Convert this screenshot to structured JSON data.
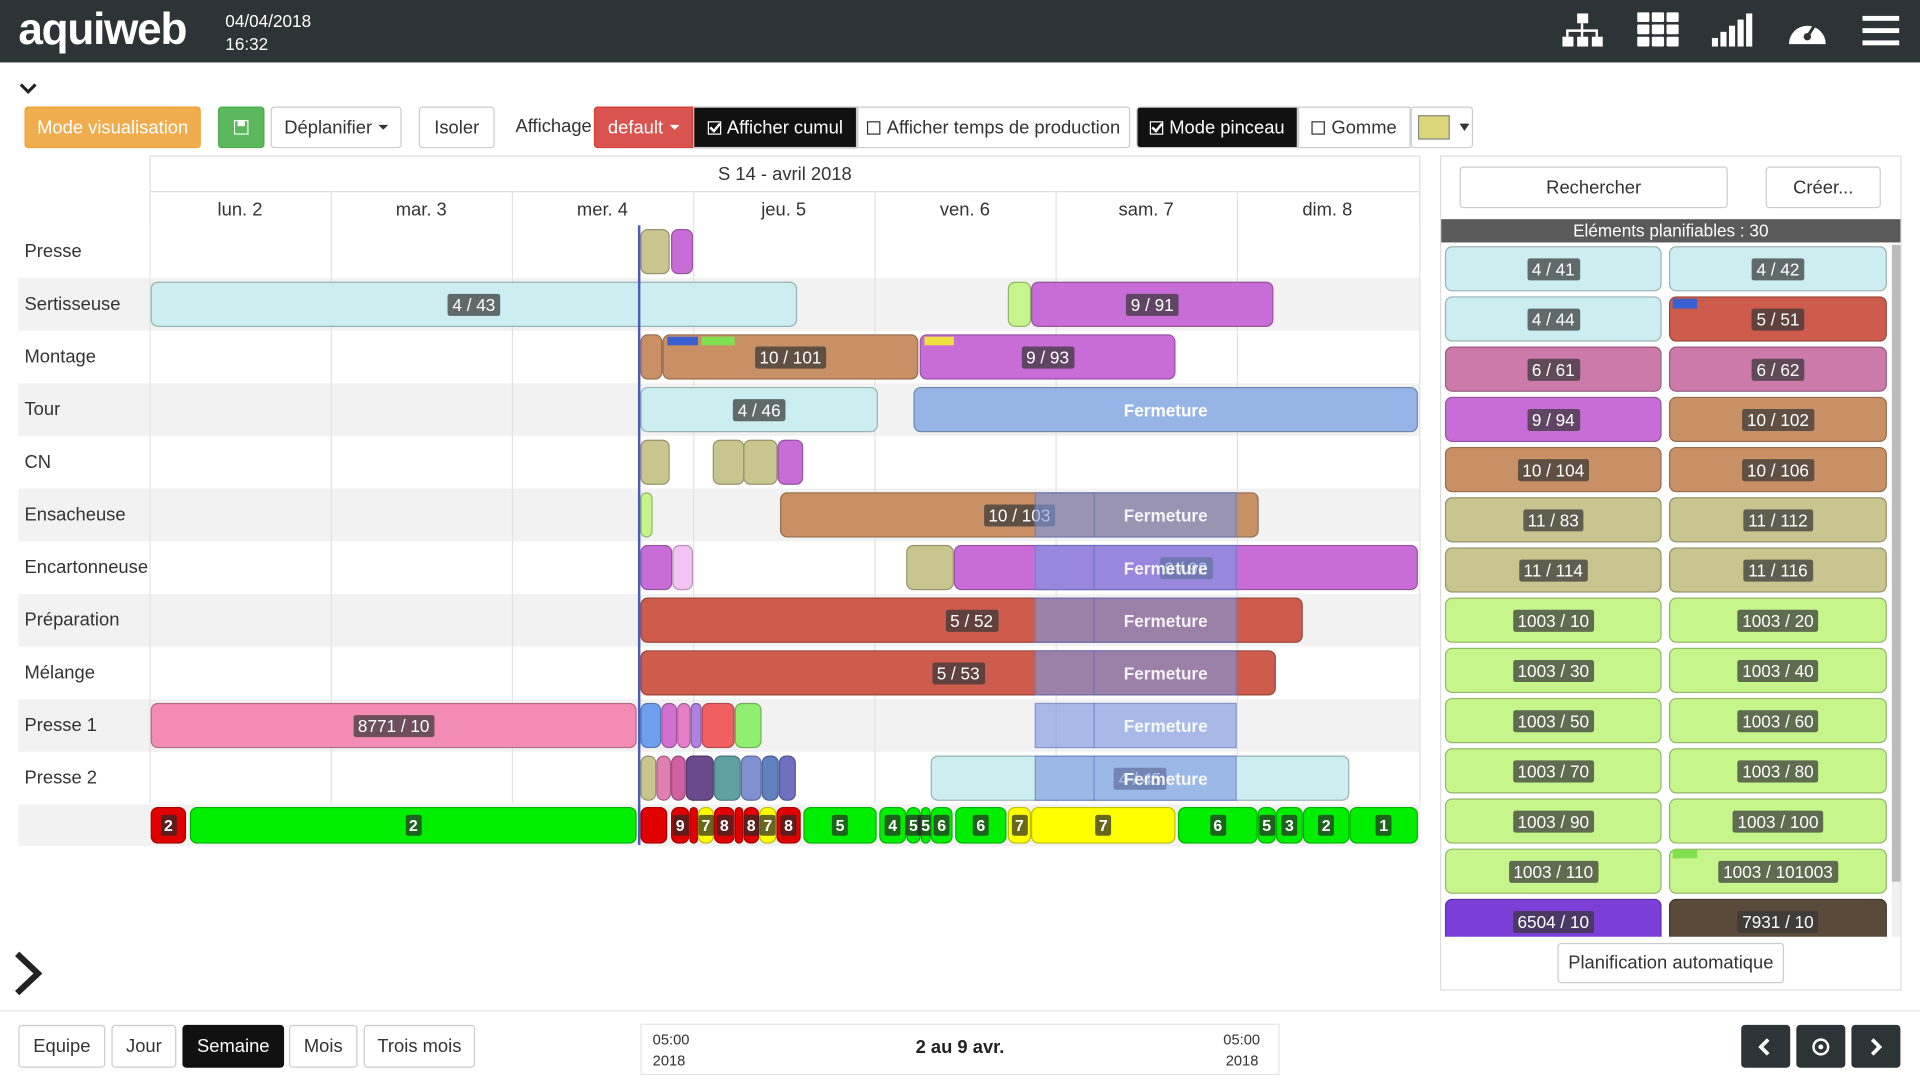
{
  "header": {
    "logo": "aquiweb",
    "date": "04/04/2018",
    "time": "16:32"
  },
  "toolbar": {
    "mode": "Mode visualisation",
    "deplanifier": "Déplanifier",
    "isoler": "Isoler",
    "affichage": "Affichage",
    "default": "default",
    "afficher_cumul": "Afficher cumul",
    "afficher_temps": "Afficher temps de production",
    "mode_pinceau": "Mode pinceau",
    "gomme": "Gomme"
  },
  "calendar": {
    "week": "S 14 - avril 2018",
    "days": [
      "lun. 2",
      "mar. 3",
      "mer. 4",
      "jeu. 5",
      "ven. 6",
      "sam. 7",
      "dim. 8"
    ],
    "rows": [
      {
        "name": "Presse",
        "bars": []
      },
      {
        "name": "Sertisseuse",
        "bars": [
          "4 / 43",
          "9 / 91"
        ]
      },
      {
        "name": "Montage",
        "bars": [
          "10 / 101",
          "9 / 93"
        ]
      },
      {
        "name": "Tour",
        "bars": [
          "4 / 46",
          "Fermeture"
        ]
      },
      {
        "name": "CN",
        "bars": []
      },
      {
        "name": "Ensacheuse",
        "bars": [
          "10 / 103",
          "Fermeture"
        ]
      },
      {
        "name": "Encartonneuse",
        "bars": [
          "9 / 92",
          "Fermeture"
        ]
      },
      {
        "name": "Préparation",
        "bars": [
          "5 / 52",
          "Fermeture"
        ]
      },
      {
        "name": "Mélange",
        "bars": [
          "5 / 53",
          "Fermeture"
        ]
      },
      {
        "name": "Presse 1",
        "bars": [
          "8771 / 10",
          "Fermeture"
        ]
      },
      {
        "name": "Presse 2",
        "bars": [
          "4 / 45",
          "Fermeture"
        ]
      }
    ],
    "totals": [
      "2",
      "2",
      "9",
      "7",
      "8",
      "8",
      "7",
      "8",
      "5",
      "4",
      "5",
      "5",
      "6",
      "6",
      "7",
      "7",
      "6",
      "5",
      "3",
      "2",
      "1"
    ]
  },
  "panel": {
    "search": "Rechercher",
    "create": "Créer...",
    "title": "Eléments planifiables : 30",
    "items": [
      "4 / 41",
      "4 / 42",
      "4 / 44",
      "5 / 51",
      "6 / 61",
      "6 / 62",
      "9 / 94",
      "10 / 102",
      "10 / 104",
      "10 / 106",
      "11 / 83",
      "11 / 112",
      "11 / 114",
      "11 / 116",
      "1003 / 10",
      "1003 / 20",
      "1003 / 30",
      "1003 / 40",
      "1003 / 50",
      "1003 / 60",
      "1003 / 70",
      "1003 / 80",
      "1003 / 90",
      "1003 / 100",
      "1003 / 110",
      "1003 / 101003",
      "6504 / 10",
      "7931 / 10"
    ],
    "auto": "Planification automatique"
  },
  "footer": {
    "views": [
      "Equipe",
      "Jour",
      "Semaine",
      "Mois",
      "Trois mois"
    ],
    "start_time": "05:00",
    "start_year": "2018",
    "range": "2 au 9 avr.",
    "end_time": "05:00",
    "end_year": "2018"
  }
}
